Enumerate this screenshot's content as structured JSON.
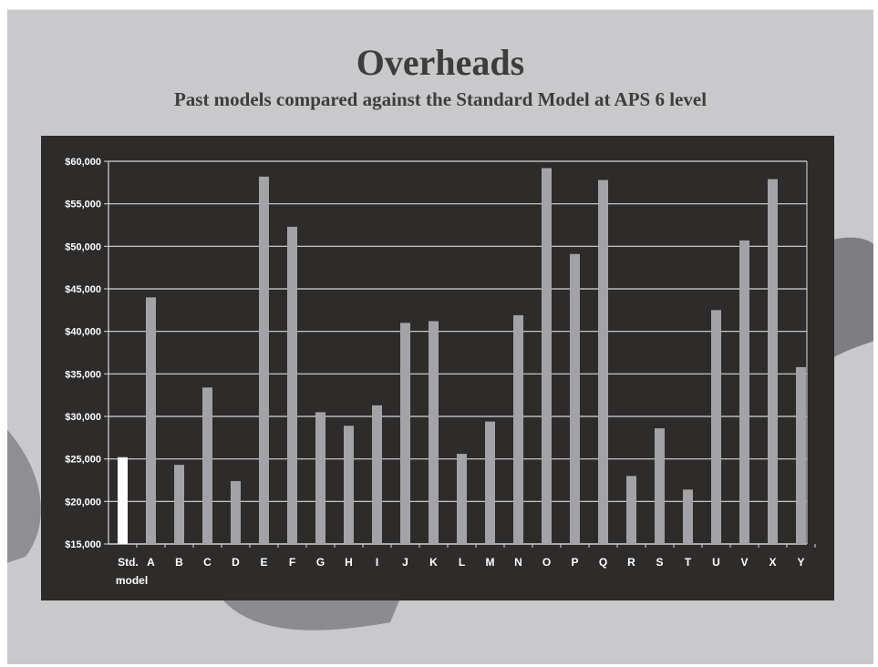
{
  "slide": {
    "title": "Overheads",
    "subtitle": "Past models compared against the Standard Model at APS 6 level",
    "background_color": "#c9c9cb",
    "chart_background_color": "#2e2b2b"
  },
  "chart_data": {
    "type": "bar",
    "title": "",
    "xlabel": "",
    "ylabel": "",
    "ylim": [
      15000,
      60000
    ],
    "y_ticks": [
      15000,
      20000,
      25000,
      30000,
      35000,
      40000,
      45000,
      50000,
      55000,
      60000
    ],
    "y_tick_labels": [
      "$15,000",
      "$20,000",
      "$25,000",
      "$30,000",
      "$35,000",
      "$40,000",
      "$45,000",
      "$50,000",
      "$55,000",
      "$60,000"
    ],
    "grid": true,
    "legend": "none",
    "categories": [
      "Std. model",
      "A",
      "B",
      "C",
      "D",
      "E",
      "F",
      "G",
      "H",
      "I",
      "J",
      "K",
      "L",
      "M",
      "N",
      "O",
      "P",
      "Q",
      "R",
      "S",
      "T",
      "U",
      "V",
      "X",
      "Y"
    ],
    "values": [
      25200,
      44000,
      24300,
      33400,
      22400,
      58200,
      52300,
      30500,
      28900,
      31300,
      41000,
      41200,
      25600,
      29400,
      41900,
      59200,
      49100,
      57800,
      23000,
      28600,
      21400,
      42500,
      50700,
      57900,
      35800
    ],
    "highlight_color": "#ffffff",
    "bar_color": "#a3a3a7",
    "grid_color": "#d8d8d8"
  }
}
